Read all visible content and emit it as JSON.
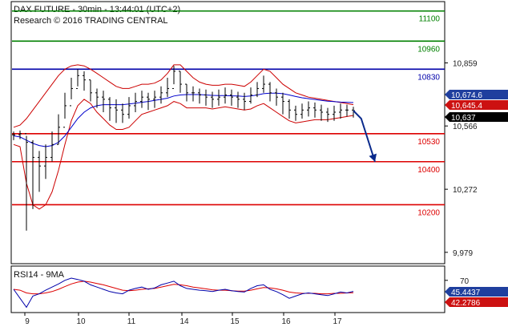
{
  "header": {
    "title": "DAX FUTURE - 30min - 13:44:01 (UTC+2)",
    "subtitle": "Research © 2016 TRADING CENTRAL"
  },
  "colors": {
    "resistance": "#008000",
    "pivot": "#0000aa",
    "support": "#dd0000",
    "price": "#000000",
    "bollinger": "#cc0000",
    "moving_average": "#0000cc",
    "arrow": "#0a2a8c",
    "rsi": "#0000aa",
    "rsi_ma": "#dd0000",
    "badge_blue": "#1f3f9e",
    "badge_red": "#cc1111",
    "badge_black": "#000000"
  },
  "chart_data": [
    {
      "type": "line",
      "name": "price-panel",
      "y_ticks": [
        "10,859",
        "10,566",
        "10,272",
        "9,979"
      ],
      "ylim": [
        9930,
        11140
      ],
      "x_tick_labels": [
        "9",
        "10",
        "11",
        "14",
        "15",
        "16",
        "17"
      ],
      "levels": [
        {
          "value": 11100,
          "label": "11100",
          "role": "resistance"
        },
        {
          "value": 10960,
          "label": "10960",
          "role": "resistance"
        },
        {
          "value": 10830,
          "label": "10830",
          "role": "pivot"
        },
        {
          "value": 10530,
          "label": "10530",
          "role": "support"
        },
        {
          "value": 10400,
          "label": "10400",
          "role": "support"
        },
        {
          "value": 10200,
          "label": "10200",
          "role": "support"
        }
      ],
      "price_badges": [
        {
          "value": 10674.6,
          "label": "10,674.6",
          "color": "blue"
        },
        {
          "value": 10645.4,
          "label": "10,645.4",
          "color": "red"
        },
        {
          "value": 10637,
          "label": "10,637",
          "color": "black"
        }
      ],
      "x_positions": [
        0,
        2,
        4,
        6,
        8,
        10,
        12,
        14,
        16,
        18,
        20,
        22,
        24,
        26,
        28,
        30,
        32,
        34,
        36,
        38,
        40,
        42,
        44,
        46,
        48,
        50,
        52,
        54,
        56,
        58,
        60,
        62,
        64,
        66,
        68,
        70,
        72,
        74,
        76,
        78,
        80,
        82,
        84,
        86,
        88,
        90,
        92,
        94,
        96,
        98,
        100,
        102,
        104,
        106
      ],
      "close": [
        10525,
        10530,
        10490,
        10420,
        10380,
        10420,
        10480,
        10560,
        10660,
        10740,
        10800,
        10780,
        10720,
        10700,
        10690,
        10650,
        10640,
        10620,
        10660,
        10680,
        10700,
        10690,
        10700,
        10720,
        10740,
        10820,
        10760,
        10720,
        10720,
        10710,
        10700,
        10690,
        10700,
        10710,
        10700,
        10690,
        10680,
        10710,
        10740,
        10760,
        10720,
        10700,
        10680,
        10640,
        10620,
        10640,
        10650,
        10640,
        10630,
        10620,
        10630,
        10640,
        10640,
        10637
      ],
      "high": [
        10540,
        10545,
        10520,
        10500,
        10450,
        10480,
        10540,
        10620,
        10720,
        10790,
        10830,
        10820,
        10780,
        10740,
        10730,
        10700,
        10690,
        10670,
        10700,
        10720,
        10730,
        10720,
        10730,
        10750,
        10790,
        10845,
        10820,
        10760,
        10750,
        10740,
        10735,
        10725,
        10735,
        10745,
        10735,
        10725,
        10720,
        10745,
        10770,
        10800,
        10770,
        10740,
        10720,
        10690,
        10660,
        10670,
        10680,
        10675,
        10665,
        10650,
        10660,
        10670,
        10665,
        10655
      ],
      "low": [
        10500,
        10505,
        10080,
        10180,
        10260,
        10320,
        10400,
        10480,
        10600,
        10690,
        10750,
        10730,
        10680,
        10650,
        10630,
        10590,
        10580,
        10580,
        10600,
        10630,
        10650,
        10640,
        10650,
        10670,
        10700,
        10760,
        10720,
        10680,
        10680,
        10670,
        10660,
        10650,
        10660,
        10670,
        10660,
        10650,
        10640,
        10670,
        10700,
        10720,
        10680,
        10660,
        10620,
        10600,
        10590,
        10600,
        10610,
        10605,
        10590,
        10585,
        10590,
        10600,
        10610,
        10605
      ],
      "bollinger_upper": [
        10560,
        10570,
        10600,
        10640,
        10680,
        10720,
        10760,
        10800,
        10830,
        10845,
        10850,
        10845,
        10830,
        10810,
        10790,
        10770,
        10750,
        10740,
        10740,
        10750,
        10760,
        10760,
        10765,
        10780,
        10810,
        10850,
        10850,
        10820,
        10790,
        10770,
        10760,
        10755,
        10755,
        10760,
        10760,
        10755,
        10750,
        10770,
        10800,
        10830,
        10820,
        10790,
        10760,
        10740,
        10720,
        10710,
        10700,
        10695,
        10690,
        10685,
        10680,
        10675,
        10670,
        10665
      ],
      "bollinger_lower": [
        10480,
        10470,
        10300,
        10200,
        10180,
        10200,
        10260,
        10360,
        10480,
        10590,
        10660,
        10690,
        10670,
        10630,
        10600,
        10570,
        10550,
        10550,
        10560,
        10590,
        10620,
        10630,
        10640,
        10650,
        10660,
        10680,
        10670,
        10650,
        10650,
        10650,
        10650,
        10645,
        10650,
        10655,
        10650,
        10645,
        10640,
        10645,
        10660,
        10670,
        10650,
        10630,
        10610,
        10590,
        10580,
        10585,
        10590,
        10595,
        10595,
        10595,
        10600,
        10605,
        10610,
        10615
      ],
      "moving_average": [
        10520,
        10515,
        10500,
        10485,
        10475,
        10470,
        10475,
        10490,
        10520,
        10560,
        10600,
        10630,
        10650,
        10660,
        10665,
        10665,
        10665,
        10665,
        10668,
        10672,
        10676,
        10680,
        10685,
        10690,
        10695,
        10705,
        10710,
        10712,
        10712,
        10712,
        10710,
        10708,
        10707,
        10707,
        10706,
        10705,
        10703,
        10705,
        10710,
        10716,
        10718,
        10718,
        10716,
        10710,
        10703,
        10697,
        10693,
        10689,
        10685,
        10681,
        10679,
        10677,
        10676,
        10674.6
      ],
      "projection": [
        {
          "x": 106,
          "value": 10637
        },
        {
          "x": 110,
          "value": 10600
        },
        {
          "x": 117,
          "value": 10400
        }
      ]
    },
    {
      "type": "line",
      "name": "rsi-panel",
      "title": "RSI14 - 9MA",
      "y_ticks": [
        "70"
      ],
      "ylim": [
        0,
        100
      ],
      "badges": [
        {
          "value": 45.4437,
          "label": "45.4437",
          "color": "blue"
        },
        {
          "value": 42.2786,
          "label": "42.2786",
          "color": "red"
        }
      ],
      "x_positions": [
        0,
        2,
        4,
        6,
        8,
        10,
        12,
        14,
        16,
        18,
        20,
        22,
        24,
        26,
        28,
        30,
        32,
        34,
        36,
        38,
        40,
        42,
        44,
        46,
        48,
        50,
        52,
        54,
        56,
        58,
        60,
        62,
        64,
        66,
        68,
        70,
        72,
        74,
        76,
        78,
        80,
        82,
        84,
        86,
        88,
        90,
        92,
        94,
        96,
        98,
        100,
        102,
        104,
        106
      ],
      "rsi": [
        50,
        30,
        10,
        35,
        40,
        48,
        55,
        62,
        70,
        75,
        72,
        68,
        60,
        55,
        50,
        45,
        42,
        40,
        48,
        52,
        55,
        50,
        53,
        60,
        64,
        68,
        58,
        52,
        50,
        48,
        47,
        45,
        48,
        50,
        47,
        45,
        44,
        52,
        58,
        60,
        50,
        45,
        38,
        30,
        35,
        40,
        42,
        40,
        38,
        36,
        40,
        44,
        42,
        45.4437
      ],
      "rsi_ma": [
        50,
        48,
        42,
        40,
        40,
        42,
        45,
        50,
        56,
        62,
        66,
        68,
        66,
        63,
        60,
        56,
        52,
        48,
        47,
        48,
        50,
        51,
        52,
        55,
        58,
        61,
        60,
        58,
        55,
        53,
        51,
        49,
        48,
        48,
        47,
        46,
        46,
        48,
        51,
        54,
        53,
        51,
        48,
        44,
        42,
        41,
        41,
        41,
        40,
        40,
        41,
        41,
        42,
        42.2786
      ]
    }
  ]
}
